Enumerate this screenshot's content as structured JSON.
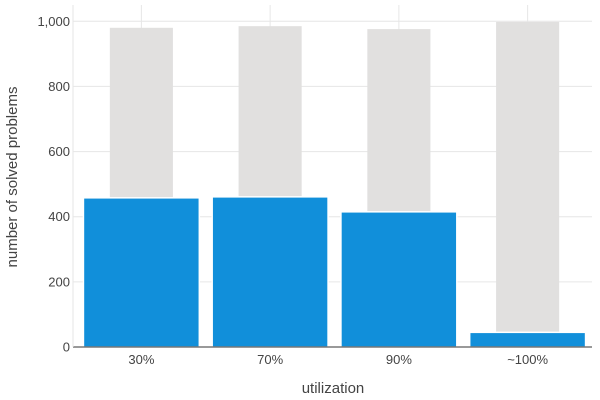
{
  "chart_data": {
    "type": "bar",
    "xlabel": "utilization",
    "ylabel": "number of solved problems",
    "categories": [
      "30%",
      "70%",
      "90%",
      "~100%"
    ],
    "series": [
      {
        "values": [
          458,
          461,
          415,
          45
        ],
        "color": "#118fda"
      },
      {
        "values": [
          980,
          985,
          976,
          998
        ],
        "color": "#e1e0df"
      }
    ],
    "ylim": [
      0,
      1050
    ],
    "yticks": [
      0,
      200,
      400,
      600,
      800,
      1000
    ],
    "ytick_labels": [
      "0",
      "200",
      "400",
      "600",
      "800",
      "1,000"
    ],
    "grid": true,
    "legend": "none"
  }
}
